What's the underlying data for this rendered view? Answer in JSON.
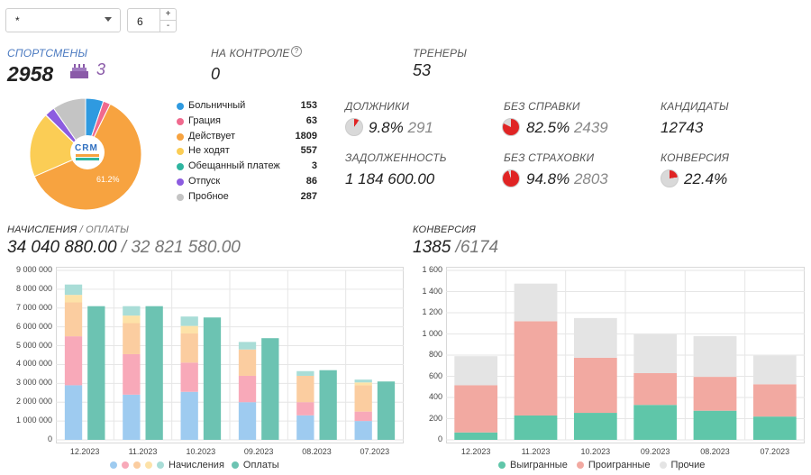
{
  "filters": {
    "select_value": "*",
    "number_value": "6",
    "plus": "+",
    "minus": "-"
  },
  "athletes": {
    "label": "СПОРТСМЕНЫ",
    "count": "2958",
    "birthdays": "3"
  },
  "control": {
    "label": "НА КОНТРОЛЕ",
    "help": "?",
    "value": "0"
  },
  "trainers": {
    "label": "ТРЕНЕРЫ",
    "value": "53"
  },
  "logo": {
    "text_top": "CRM"
  },
  "pie_label": "61.2%",
  "status_legend": [
    {
      "name": "Больничный",
      "count": "153",
      "color": "#2f9ae0"
    },
    {
      "name": "Грация",
      "count": "63",
      "color": "#f06a8e"
    },
    {
      "name": "Действует",
      "count": "1809",
      "color": "#f7a340"
    },
    {
      "name": "Не ходят",
      "count": "557",
      "color": "#fbcd55"
    },
    {
      "name": "Обещанный платеж",
      "count": "3",
      "color": "#2fb5a0"
    },
    {
      "name": "Отпуск",
      "count": "86",
      "color": "#8c5ce0"
    },
    {
      "name": "Пробное",
      "count": "287",
      "color": "#c4c4c4"
    }
  ],
  "stats": {
    "debtors": {
      "label": "ДОЛЖНИКИ",
      "pct": "9.8%",
      "count": "291",
      "frac": 0.098
    },
    "no_cert": {
      "label": "БЕЗ СПРАВКИ",
      "pct": "82.5%",
      "count": "2439",
      "frac": 0.825
    },
    "candidates": {
      "label": "КАНДИДАТЫ",
      "value": "12743"
    },
    "debt": {
      "label": "ЗАДОЛЖЕННОСТЬ",
      "value": "1 184 600.00"
    },
    "no_insurance": {
      "label": "БЕЗ СТРАХОВКИ",
      "pct": "94.8%",
      "count": "2803",
      "frac": 0.948
    },
    "conversion": {
      "label": "КОНВЕРСИЯ",
      "pct": "22.4%",
      "frac": 0.224
    }
  },
  "charges": {
    "label_main": "НАЧИСЛЕНИЯ",
    "label_sep": " / ОПЛАТЫ",
    "charged": "34 040 880.00",
    "paid": " / 32 821 580.00"
  },
  "conv": {
    "label": "КОНВЕРСИЯ",
    "won": "1385",
    "total": " /6174"
  },
  "chart_data": [
    {
      "type": "bar",
      "categories": [
        "12.2023",
        "11.2023",
        "10.2023",
        "09.2023",
        "08.2023",
        "07.2023"
      ],
      "ylim": [
        0,
        9000000
      ],
      "yticks": [
        "0",
        "1 000 000",
        "2 000 000",
        "3 000 000",
        "4 000 000",
        "5 000 000",
        "6 000 000",
        "7 000 000",
        "8 000 000",
        "9 000 000"
      ],
      "stacked_series": [
        {
          "color": "#9ecbf0",
          "values": [
            2900000,
            2400000,
            2550000,
            2000000,
            1300000,
            1000000
          ]
        },
        {
          "color": "#f8a9b9",
          "values": [
            2600000,
            2150000,
            1550000,
            1400000,
            700000,
            500000
          ]
        },
        {
          "color": "#fbcda0",
          "values": [
            1800000,
            1650000,
            1550000,
            1400000,
            1400000,
            1400000
          ]
        },
        {
          "color": "#fde2a8",
          "values": [
            400000,
            400000,
            400000,
            0,
            0,
            150000
          ]
        },
        {
          "color": "#a9ddd7",
          "values": [
            550000,
            500000,
            500000,
            400000,
            250000,
            150000
          ]
        }
      ],
      "paid_series": {
        "name": "Оплаты",
        "color": "#6cc3b2",
        "values": [
          7100000,
          7100000,
          6500000,
          5400000,
          3700000,
          3100000
        ]
      },
      "legend": {
        "charged": "Начисления",
        "paid": "Оплаты",
        "dots": [
          "#9ecbf0",
          "#f8a9b9",
          "#fbcda0",
          "#fde2a8",
          "#a9ddd7"
        ]
      }
    },
    {
      "type": "bar",
      "categories": [
        "12.2023",
        "11.2023",
        "10.2023",
        "09.2023",
        "08.2023",
        "07.2023"
      ],
      "ylim": [
        0,
        1600
      ],
      "yticks": [
        "0",
        "200",
        "400",
        "600",
        "800",
        "1 000",
        "1 200",
        "1 400",
        "1 600"
      ],
      "series": [
        {
          "name": "Выигранные",
          "color": "#5fc6a9",
          "values": [
            70,
            230,
            255,
            330,
            275,
            220
          ]
        },
        {
          "name": "Проигранные",
          "color": "#f2a9a1",
          "values": [
            445,
            890,
            520,
            300,
            320,
            305
          ]
        },
        {
          "name": "Прочие",
          "color": "#e4e4e4",
          "values": [
            275,
            355,
            375,
            365,
            385,
            270
          ]
        }
      ]
    }
  ]
}
